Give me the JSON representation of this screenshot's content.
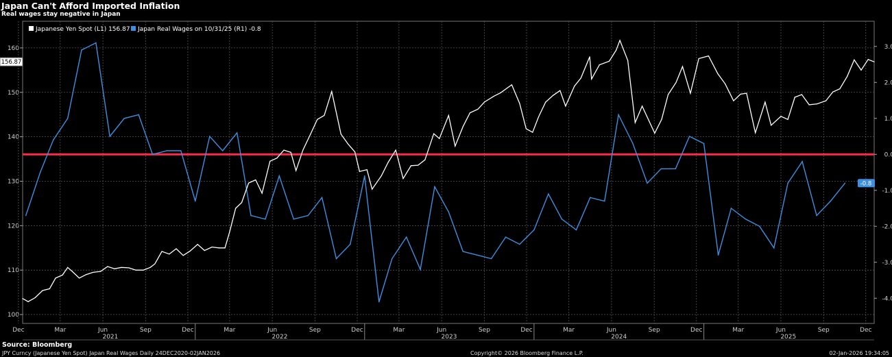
{
  "header": {
    "title": "Japan Can't Afford Imported Inflation",
    "subtitle": "Real wages stay negative in Japan"
  },
  "legend": {
    "yen_label": "Japanese Yen Spot (L1) 156.87",
    "wages_label": "Japan Real Wages on 10/31/25 (R1) -0.8"
  },
  "footer": {
    "source": "Source: Bloomberg",
    "series_info": "JPY Curncy (Japanese Yen Spot) Japan Real Wages Daily 24DEC2020-02JAN2026",
    "copyright": "Copyright© 2026 Bloomberg Finance L.P.",
    "timestamp": "02-Jan-2026 19:34:05"
  },
  "colors": {
    "background": "#000000",
    "yen_line": "#ffffff",
    "wages_line": "#3d8fe0",
    "zero_line": "#ff2a4a",
    "grid": "#555555"
  },
  "chart_data": {
    "type": "line",
    "title": "Japan Can't Afford Imported Inflation",
    "subtitle": "Real wages stay negative in Japan",
    "x_range": [
      "2020-12-24",
      "2026-01-02"
    ],
    "month_ticks": [
      {
        "date": "2020-12-15",
        "label": "Dec"
      },
      {
        "date": "2021-03-15",
        "label": "Mar"
      },
      {
        "date": "2021-06-15",
        "label": "Jun"
      },
      {
        "date": "2021-09-15",
        "label": "Sep"
      },
      {
        "date": "2021-12-15",
        "label": "Dec"
      },
      {
        "date": "2022-03-15",
        "label": "Mar"
      },
      {
        "date": "2022-06-15",
        "label": "Jun"
      },
      {
        "date": "2022-09-15",
        "label": "Sep"
      },
      {
        "date": "2022-12-15",
        "label": "Dec"
      },
      {
        "date": "2023-03-15",
        "label": "Mar"
      },
      {
        "date": "2023-06-15",
        "label": "Jun"
      },
      {
        "date": "2023-09-15",
        "label": "Sep"
      },
      {
        "date": "2023-12-15",
        "label": "Dec"
      },
      {
        "date": "2024-03-15",
        "label": "Mar"
      },
      {
        "date": "2024-06-15",
        "label": "Jun"
      },
      {
        "date": "2024-09-15",
        "label": "Sep"
      },
      {
        "date": "2024-12-15",
        "label": "Dec"
      },
      {
        "date": "2025-03-15",
        "label": "Mar"
      },
      {
        "date": "2025-06-15",
        "label": "Jun"
      },
      {
        "date": "2025-09-15",
        "label": "Sep"
      },
      {
        "date": "2025-12-15",
        "label": "Dec"
      }
    ],
    "year_labels": [
      {
        "date": "2021-07-01",
        "label": "2021"
      },
      {
        "date": "2022-07-01",
        "label": "2022"
      },
      {
        "date": "2023-07-01",
        "label": "2023"
      },
      {
        "date": "2024-07-01",
        "label": "2024"
      },
      {
        "date": "2025-07-01",
        "label": "2025"
      }
    ],
    "year_dividers": [
      "2021-12-31",
      "2022-12-31",
      "2023-12-31",
      "2024-12-31"
    ],
    "left_axis": {
      "ylim": [
        98,
        166
      ],
      "ticks": [
        100,
        110,
        120,
        130,
        140,
        150,
        160
      ],
      "last_value_label": "156.87",
      "last_value": 156.87
    },
    "right_axis": {
      "ylim": [
        -4.7,
        3.7
      ],
      "ticks": [
        3.0,
        2.0,
        1.0,
        0.0,
        -1.0,
        -2.0,
        -3.0,
        -4.0
      ],
      "tick_labels": [
        "3.0",
        "2.0",
        "1.0",
        "0.0",
        "-1.0",
        "-2.0",
        "-3.0",
        "-4.0"
      ],
      "last_value_label": "-0.8",
      "last_value": -0.8
    },
    "reference_line": {
      "axis": "right",
      "value": 0.0
    },
    "series": [
      {
        "name": "Japanese Yen Spot",
        "axis": "left",
        "points": [
          [
            "2020-12-24",
            103.6
          ],
          [
            "2021-01-05",
            102.9
          ],
          [
            "2021-01-20",
            103.8
          ],
          [
            "2021-02-05",
            105.4
          ],
          [
            "2021-02-20",
            105.8
          ],
          [
            "2021-03-05",
            108.2
          ],
          [
            "2021-03-20",
            108.9
          ],
          [
            "2021-03-31",
            110.6
          ],
          [
            "2021-04-10",
            109.7
          ],
          [
            "2021-04-25",
            108.2
          ],
          [
            "2021-05-10",
            109.0
          ],
          [
            "2021-05-25",
            109.5
          ],
          [
            "2021-06-10",
            109.7
          ],
          [
            "2021-06-25",
            110.8
          ],
          [
            "2021-07-10",
            110.3
          ],
          [
            "2021-07-25",
            110.6
          ],
          [
            "2021-08-10",
            110.5
          ],
          [
            "2021-08-25",
            110.0
          ],
          [
            "2021-09-10",
            110.0
          ],
          [
            "2021-09-25",
            110.6
          ],
          [
            "2021-10-05",
            111.4
          ],
          [
            "2021-10-20",
            114.2
          ],
          [
            "2021-11-05",
            113.6
          ],
          [
            "2021-11-20",
            114.8
          ],
          [
            "2021-12-05",
            113.3
          ],
          [
            "2021-12-20",
            114.3
          ],
          [
            "2022-01-05",
            115.8
          ],
          [
            "2022-01-20",
            114.4
          ],
          [
            "2022-02-05",
            115.2
          ],
          [
            "2022-02-20",
            115.0
          ],
          [
            "2022-03-05",
            115.0
          ],
          [
            "2022-03-15",
            118.6
          ],
          [
            "2022-03-28",
            123.9
          ],
          [
            "2022-04-10",
            125.2
          ],
          [
            "2022-04-25",
            129.6
          ],
          [
            "2022-05-10",
            130.3
          ],
          [
            "2022-05-24",
            127.3
          ],
          [
            "2022-06-10",
            134.5
          ],
          [
            "2022-06-25",
            135.2
          ],
          [
            "2022-07-10",
            137.0
          ],
          [
            "2022-07-25",
            136.5
          ],
          [
            "2022-08-05",
            132.4
          ],
          [
            "2022-08-20",
            137.0
          ],
          [
            "2022-09-05",
            140.5
          ],
          [
            "2022-09-20",
            143.9
          ],
          [
            "2022-10-05",
            144.8
          ],
          [
            "2022-10-21",
            150.2
          ],
          [
            "2022-11-10",
            140.6
          ],
          [
            "2022-11-25",
            138.4
          ],
          [
            "2022-12-10",
            136.6
          ],
          [
            "2022-12-20",
            132.2
          ],
          [
            "2023-01-05",
            132.6
          ],
          [
            "2023-01-16",
            128.2
          ],
          [
            "2023-02-05",
            131.2
          ],
          [
            "2023-02-20",
            134.3
          ],
          [
            "2023-03-08",
            137.0
          ],
          [
            "2023-03-24",
            130.6
          ],
          [
            "2023-04-10",
            133.5
          ],
          [
            "2023-04-25",
            133.6
          ],
          [
            "2023-05-10",
            134.8
          ],
          [
            "2023-05-29",
            140.7
          ],
          [
            "2023-06-10",
            139.6
          ],
          [
            "2023-06-30",
            144.8
          ],
          [
            "2023-07-14",
            137.9
          ],
          [
            "2023-07-31",
            142.3
          ],
          [
            "2023-08-15",
            145.4
          ],
          [
            "2023-09-01",
            146.2
          ],
          [
            "2023-09-15",
            147.8
          ],
          [
            "2023-10-05",
            149.1
          ],
          [
            "2023-10-20",
            149.9
          ],
          [
            "2023-11-13",
            151.7
          ],
          [
            "2023-11-30",
            147.5
          ],
          [
            "2023-12-14",
            141.8
          ],
          [
            "2023-12-28",
            141.0
          ],
          [
            "2024-01-10",
            144.5
          ],
          [
            "2024-01-25",
            147.8
          ],
          [
            "2024-02-10",
            149.3
          ],
          [
            "2024-02-25",
            150.4
          ],
          [
            "2024-03-08",
            146.9
          ],
          [
            "2024-03-27",
            151.4
          ],
          [
            "2024-04-10",
            153.2
          ],
          [
            "2024-04-29",
            158.0
          ],
          [
            "2024-05-03",
            153.0
          ],
          [
            "2024-05-20",
            156.2
          ],
          [
            "2024-06-10",
            157.0
          ],
          [
            "2024-06-25",
            159.5
          ],
          [
            "2024-07-03",
            161.7
          ],
          [
            "2024-07-20",
            157.2
          ],
          [
            "2024-08-05",
            143.2
          ],
          [
            "2024-08-20",
            146.9
          ],
          [
            "2024-09-16",
            140.8
          ],
          [
            "2024-10-01",
            143.9
          ],
          [
            "2024-10-15",
            149.5
          ],
          [
            "2024-11-01",
            152.2
          ],
          [
            "2024-11-15",
            155.8
          ],
          [
            "2024-12-02",
            149.8
          ],
          [
            "2024-12-20",
            157.6
          ],
          [
            "2025-01-10",
            158.2
          ],
          [
            "2025-01-30",
            154.2
          ],
          [
            "2025-02-15",
            151.9
          ],
          [
            "2025-03-05",
            148.1
          ],
          [
            "2025-03-20",
            149.6
          ],
          [
            "2025-04-02",
            149.8
          ],
          [
            "2025-04-21",
            140.9
          ],
          [
            "2025-05-12",
            147.8
          ],
          [
            "2025-05-25",
            142.6
          ],
          [
            "2025-06-15",
            144.6
          ],
          [
            "2025-06-30",
            143.9
          ],
          [
            "2025-07-15",
            148.9
          ],
          [
            "2025-07-30",
            149.5
          ],
          [
            "2025-08-15",
            147.2
          ],
          [
            "2025-09-01",
            147.4
          ],
          [
            "2025-09-20",
            148.1
          ],
          [
            "2025-10-05",
            150.1
          ],
          [
            "2025-10-20",
            150.8
          ],
          [
            "2025-11-05",
            153.6
          ],
          [
            "2025-11-20",
            157.3
          ],
          [
            "2025-12-05",
            155.0
          ],
          [
            "2025-12-20",
            157.4
          ],
          [
            "2026-01-02",
            156.87
          ]
        ]
      },
      {
        "name": "Japan Real Wages",
        "axis": "right",
        "points": [
          [
            "2020-12-31",
            -1.7
          ],
          [
            "2021-01-31",
            -0.5
          ],
          [
            "2021-02-28",
            0.4
          ],
          [
            "2021-03-31",
            1.0
          ],
          [
            "2021-04-30",
            2.9
          ],
          [
            "2021-05-31",
            3.1
          ],
          [
            "2021-06-30",
            0.5
          ],
          [
            "2021-07-31",
            1.0
          ],
          [
            "2021-08-31",
            1.1
          ],
          [
            "2021-09-30",
            0.0
          ],
          [
            "2021-10-31",
            0.1
          ],
          [
            "2021-11-30",
            0.1
          ],
          [
            "2021-12-31",
            -1.3
          ],
          [
            "2022-01-31",
            0.5
          ],
          [
            "2022-02-28",
            0.1
          ],
          [
            "2022-03-31",
            0.6
          ],
          [
            "2022-04-30",
            -1.7
          ],
          [
            "2022-05-31",
            -1.8
          ],
          [
            "2022-06-30",
            -0.6
          ],
          [
            "2022-07-31",
            -1.8
          ],
          [
            "2022-08-31",
            -1.7
          ],
          [
            "2022-09-30",
            -1.2
          ],
          [
            "2022-10-31",
            -2.9
          ],
          [
            "2022-11-30",
            -2.5
          ],
          [
            "2022-12-31",
            -0.6
          ],
          [
            "2023-01-31",
            -4.1
          ],
          [
            "2023-02-28",
            -2.9
          ],
          [
            "2023-03-31",
            -2.3
          ],
          [
            "2023-04-30",
            -3.2
          ],
          [
            "2023-05-31",
            -0.9
          ],
          [
            "2023-06-30",
            -1.6
          ],
          [
            "2023-07-31",
            -2.7
          ],
          [
            "2023-08-31",
            -2.8
          ],
          [
            "2023-09-30",
            -2.9
          ],
          [
            "2023-10-31",
            -2.3
          ],
          [
            "2023-11-30",
            -2.5
          ],
          [
            "2023-12-31",
            -2.1
          ],
          [
            "2024-01-31",
            -1.1
          ],
          [
            "2024-02-29",
            -1.8
          ],
          [
            "2024-03-31",
            -2.1
          ],
          [
            "2024-04-30",
            -1.2
          ],
          [
            "2024-05-31",
            -1.3
          ],
          [
            "2024-06-30",
            1.1
          ],
          [
            "2024-07-31",
            0.3
          ],
          [
            "2024-08-31",
            -0.8
          ],
          [
            "2024-09-30",
            -0.4
          ],
          [
            "2024-10-31",
            -0.4
          ],
          [
            "2024-11-30",
            0.5
          ],
          [
            "2024-12-31",
            0.3
          ],
          [
            "2025-01-31",
            -2.8
          ],
          [
            "2025-02-28",
            -1.5
          ],
          [
            "2025-03-31",
            -1.8
          ],
          [
            "2025-04-30",
            -2.0
          ],
          [
            "2025-05-31",
            -2.6
          ],
          [
            "2025-06-30",
            -0.8
          ],
          [
            "2025-07-31",
            -0.2
          ],
          [
            "2025-08-31",
            -1.7
          ],
          [
            "2025-09-30",
            -1.3
          ],
          [
            "2025-10-31",
            -0.8
          ]
        ]
      }
    ]
  }
}
